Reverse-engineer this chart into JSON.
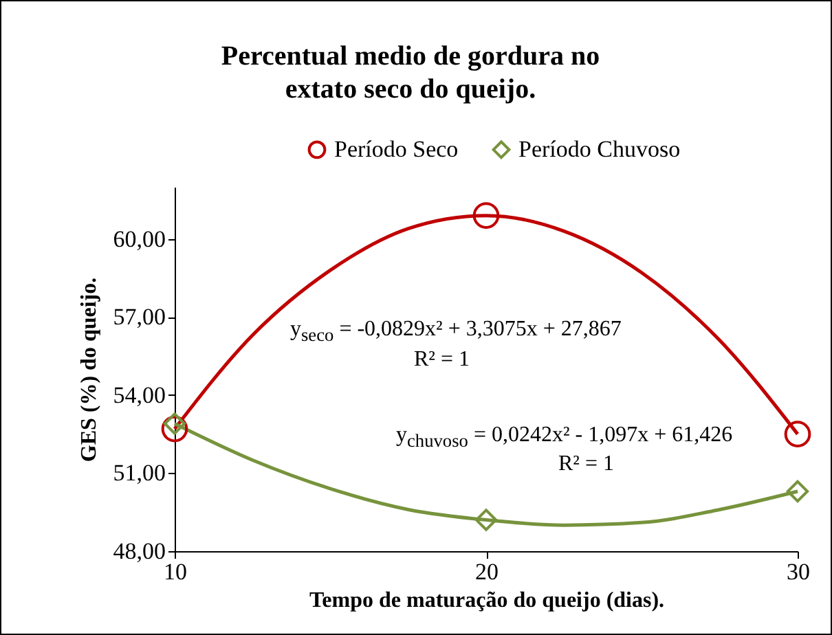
{
  "chart_data": {
    "type": "scatter",
    "title": "Percentual medio de gordura no extato seco do queijo.",
    "xlabel": "Tempo de maturação do queijo (dias).",
    "ylabel": "GES (%) do queijo.",
    "xlim": [
      10,
      30
    ],
    "xticks": [
      10,
      20,
      30
    ],
    "ylim": [
      48,
      62
    ],
    "yticks": [
      {
        "value": 48,
        "label": "48,00"
      },
      {
        "value": 51,
        "label": "51,00"
      },
      {
        "value": 54,
        "label": "54,00"
      },
      {
        "value": 57,
        "label": "57,00"
      },
      {
        "value": 60,
        "label": "60,00"
      }
    ],
    "grid": false,
    "legend": "top",
    "series": [
      {
        "type": "line",
        "color": "#c00000",
        "x": [
          10,
          12.5,
          15,
          17.5,
          20,
          22.5,
          25,
          27.5,
          30
        ],
        "values": [
          52.7,
          56.3,
          58.8,
          60.4,
          60.9,
          60.3,
          58.7,
          56.1,
          52.5
        ]
      },
      {
        "type": "line",
        "color": "#77933c",
        "x": [
          10,
          12.5,
          15,
          17.5,
          20,
          22.5,
          25,
          27.5,
          30
        ],
        "values": [
          52.9,
          51.5,
          50.4,
          49.6,
          49.2,
          49.0,
          49.1,
          49.6,
          50.3
        ]
      },
      {
        "name": "Período Seco",
        "color": "#c00000",
        "marker": "circle",
        "x": [
          10,
          20,
          30
        ],
        "values": [
          52.7,
          60.9,
          52.5
        ]
      },
      {
        "name": "Período Chuvoso",
        "color": "#77933c",
        "marker": "diamond",
        "x": [
          10,
          20,
          30
        ],
        "values": [
          52.9,
          49.2,
          50.3
        ]
      }
    ],
    "annotations": [
      "y$_{seco}$ = -0,0829x² + 3,3075x + 27,867",
      "R² = 1",
      "y$_{chuvoso}$ = 0,0242x² - 1,097x + 61,426",
      "R² = 1"
    ]
  }
}
